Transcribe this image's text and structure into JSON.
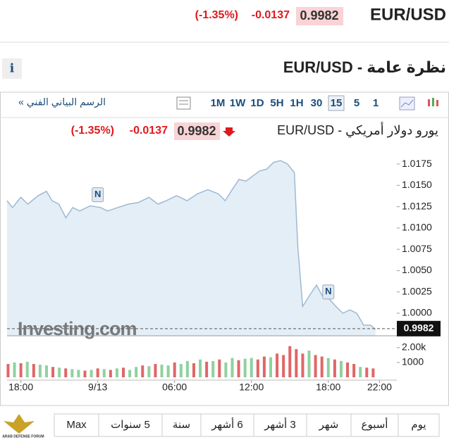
{
  "header": {
    "pair": "EUR/USD",
    "price": "0.9982",
    "change": "-0.0137",
    "change_pct": "(-1.35%)"
  },
  "overview": {
    "info": "i",
    "title": "نظرة عامة - EUR/USD"
  },
  "toolbar": {
    "chart_link": "الرسم البياني الفني »",
    "intervals": [
      "1M",
      "1W",
      "1D",
      "5H",
      "1H",
      "30",
      "15",
      "5",
      "1"
    ],
    "selected_interval": 6
  },
  "chart_data": {
    "type": "line",
    "title": "يورو دولار أمريكي - EUR/USD",
    "price": "0.9982",
    "change": "-0.0137",
    "change_pct": "(-1.35%)",
    "watermark": "Investing.com",
    "color": "#9db9d3",
    "fill": "#e4eef6",
    "x": [
      -1.08,
      -0.65,
      0,
      0.54,
      1.35,
      2,
      2.43,
      2.97,
      3.51,
      4.05,
      4.59,
      5.41,
      6.22,
      6.76,
      7.57,
      8.38,
      9.19,
      10,
      10.7,
      11.35,
      12.16,
      12.97,
      13.78,
      14.59,
      15.41,
      15.95,
      16.49,
      17.03,
      17.57,
      18.11,
      18.65,
      19.19,
      19.73,
      20.27,
      20.81,
      21.35,
      21.62,
      22,
      22.54,
      23.08,
      23.51,
      24.05,
      24.59,
      25.14,
      25.68,
      26.22,
      26.76,
      27.3,
      27.68
    ],
    "values": [
      1.0132,
      1.0124,
      1.0136,
      1.0128,
      1.0138,
      1.0143,
      1.0132,
      1.0128,
      1.0112,
      1.0124,
      1.012,
      1.0126,
      1.0124,
      1.012,
      1.0124,
      1.0128,
      1.013,
      1.0136,
      1.0128,
      1.0132,
      1.0138,
      1.0132,
      1.014,
      1.0145,
      1.014,
      1.0132,
      1.0145,
      1.0157,
      1.0155,
      1.0161,
      1.0167,
      1.0169,
      1.0177,
      1.0179,
      1.0175,
      1.0165,
      1.0078,
      1.0008,
      1.0021,
      1.0033,
      1.0021,
      1.0017,
      1.0008,
      1,
      1.0004,
      1,
      0.9986,
      0.9986,
      0.9981
    ],
    "xlim": [
      -1.08,
      29.35
    ],
    "ylim": [
      0.99736,
      1.01899
    ],
    "xticks": [
      {
        "value": 0,
        "label": "18:00"
      },
      {
        "value": 6,
        "label": "9/13"
      },
      {
        "value": 12,
        "label": "06:00"
      },
      {
        "value": 18,
        "label": "12:00"
      },
      {
        "value": 24,
        "label": "18:00"
      },
      {
        "value": 28,
        "label": "22:00"
      }
    ],
    "yticks": [
      {
        "value": 1,
        "label": "1.0000"
      },
      1.0025,
      {
        "value": 1.005,
        "label": "1.0050"
      },
      1.0075,
      {
        "value": 1.01,
        "label": "1.0100"
      },
      1.0125,
      {
        "value": 1.015,
        "label": "1.0150"
      },
      1.0175
    ],
    "last_price": {
      "value": 0.9982,
      "label": "0.9982"
    },
    "annotations": [
      {
        "x": 6,
        "y": 1.0139,
        "label": "N"
      },
      {
        "x": 24,
        "y": 1.0025,
        "label": "N"
      }
    ],
    "volume": {
      "x": [
        -1,
        -0.5,
        0,
        0.5,
        1,
        1.5,
        2,
        2.5,
        3,
        3.5,
        4,
        4.5,
        5,
        5.5,
        6,
        6.5,
        7,
        7.5,
        8,
        8.5,
        9,
        9.5,
        10,
        10.5,
        11,
        11.5,
        12,
        12.5,
        13,
        13.5,
        14,
        14.5,
        15,
        15.5,
        16,
        16.5,
        17,
        17.5,
        18,
        18.5,
        19,
        19.5,
        20,
        20.5,
        21,
        21.5,
        22,
        22.5,
        23,
        23.5,
        24,
        24.5,
        25,
        25.5,
        26,
        26.5,
        27,
        27.5
      ],
      "values": [
        900,
        1000,
        950,
        1050,
        900,
        850,
        800,
        700,
        650,
        600,
        550,
        500,
        450,
        500,
        600,
        550,
        500,
        600,
        650,
        500,
        700,
        800,
        750,
        900,
        850,
        800,
        1000,
        900,
        1100,
        950,
        1200,
        1050,
        1100,
        1200,
        1000,
        1300,
        1150,
        1250,
        1300,
        1200,
        1400,
        1350,
        1600,
        1500,
        2100,
        1900,
        1600,
        1800,
        1500,
        1400,
        1300,
        1200,
        1100,
        1000,
        900,
        700,
        650,
        600
      ],
      "colors": [
        "#e06666",
        "#8fd19e",
        "#e06666",
        "#8fd19e",
        "#e06666",
        "#8fd19e",
        "#8fd19e",
        "#e06666",
        "#8fd19e",
        "#e06666",
        "#8fd19e",
        "#8fd19e",
        "#e06666",
        "#8fd19e",
        "#e06666",
        "#8fd19e",
        "#e06666",
        "#8fd19e",
        "#e06666",
        "#8fd19e",
        "#8fd19e",
        "#e06666",
        "#8fd19e",
        "#e06666",
        "#8fd19e",
        "#8fd19e",
        "#e06666",
        "#8fd19e",
        "#8fd19e",
        "#e06666",
        "#8fd19e",
        "#e06666",
        "#8fd19e",
        "#e06666",
        "#8fd19e",
        "#8fd19e",
        "#e06666",
        "#8fd19e",
        "#8fd19e",
        "#e06666",
        "#e06666",
        "#8fd19e",
        "#e06666",
        "#e06666",
        "#e06666",
        "#e06666",
        "#e06666",
        "#8fd19e",
        "#e06666",
        "#e06666",
        "#8fd19e",
        "#e06666",
        "#8fd19e",
        "#e06666",
        "#e06666",
        "#8fd19e",
        "#e06666",
        "#e06666"
      ],
      "ylim": [
        0,
        2800
      ],
      "yticks": [
        1000,
        {
          "value": 2000,
          "label": "2.00k"
        }
      ]
    }
  },
  "ranges": [
    "يوم",
    "أسبوع",
    "شهر",
    "3 أشهر",
    "6 أشهر",
    "سنة",
    "5 سنوات",
    "Max"
  ],
  "logo_text": "ARAB DEFENSE FORUM"
}
